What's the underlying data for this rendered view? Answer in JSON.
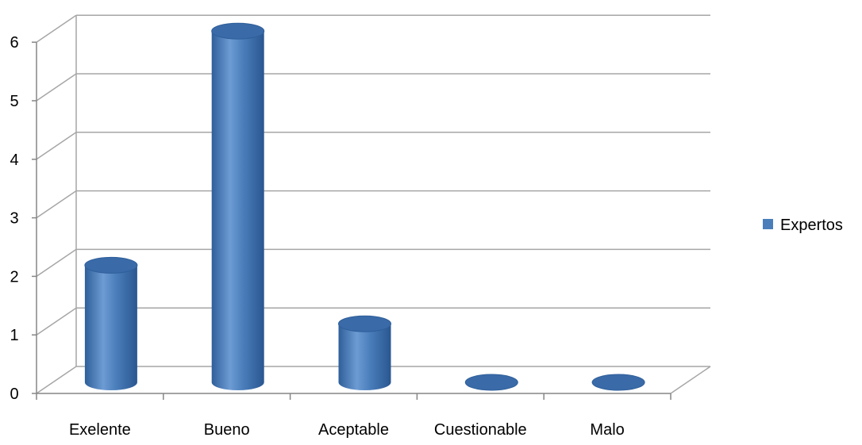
{
  "chart_data": {
    "type": "bar",
    "style": "3d-cylinder",
    "categories": [
      "Exelente",
      "Bueno",
      "Aceptable",
      "Cuestionable",
      "Malo"
    ],
    "series": [
      {
        "name": "Expertos",
        "values": [
          2,
          6,
          1,
          0,
          0
        ]
      }
    ],
    "yticks": [
      "0",
      "1",
      "2",
      "3",
      "4",
      "5",
      "6"
    ],
    "ylim": [
      0,
      6
    ],
    "grid": true,
    "legend_position": "right",
    "colors": {
      "series": "#4a7ebb",
      "series_dark": "#2f5f9a",
      "series_top": "#3a6aa8",
      "gridline": "#a6a6a6",
      "axis": "#868686"
    }
  }
}
